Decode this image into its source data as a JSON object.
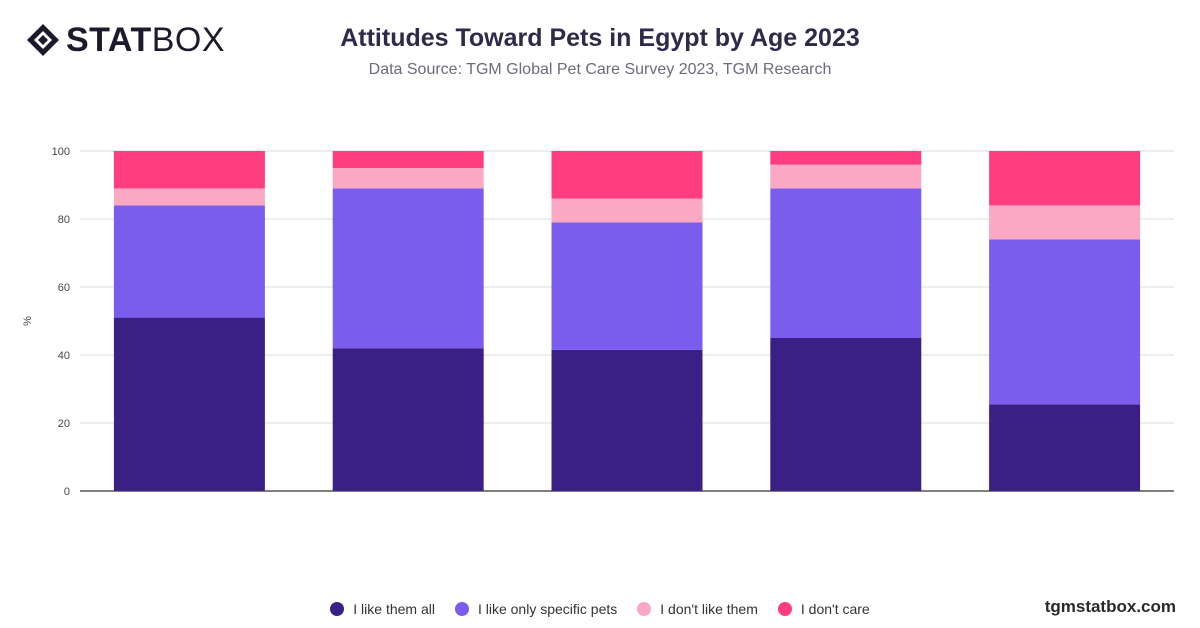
{
  "brand": {
    "logo_bold": "STAT",
    "logo_light": "BOX",
    "site": "tgmstatbox.com"
  },
  "header": {
    "title": "Attitudes Toward Pets in Egypt by Age 2023",
    "subtitle": "Data Source: TGM Global Pet Care Survey 2023, TGM Research"
  },
  "chart_data": {
    "type": "bar",
    "stacked": true,
    "title": "Attitudes Toward Pets in Egypt by Age 2023",
    "xlabel": "",
    "ylabel": "%",
    "ylim": [
      0,
      100
    ],
    "yticks": [
      0,
      20,
      40,
      60,
      80,
      100
    ],
    "grid": true,
    "legend_position": "bottom",
    "categories": [
      "",
      "",
      "",
      "",
      ""
    ],
    "series": [
      {
        "name": "I like them all",
        "color": "#3a1f85",
        "values": [
          51,
          42,
          41.5,
          45,
          25.5
        ]
      },
      {
        "name": "I like only specific pets",
        "color": "#7b5ced",
        "values": [
          33,
          47,
          37.5,
          44,
          48.5
        ]
      },
      {
        "name": "I don't like them",
        "color": "#fba8c4",
        "values": [
          5,
          6,
          7,
          7,
          10
        ]
      },
      {
        "name": "I don't care",
        "color": "#ff3d7f",
        "values": [
          11,
          5,
          14,
          4,
          16
        ]
      }
    ]
  }
}
